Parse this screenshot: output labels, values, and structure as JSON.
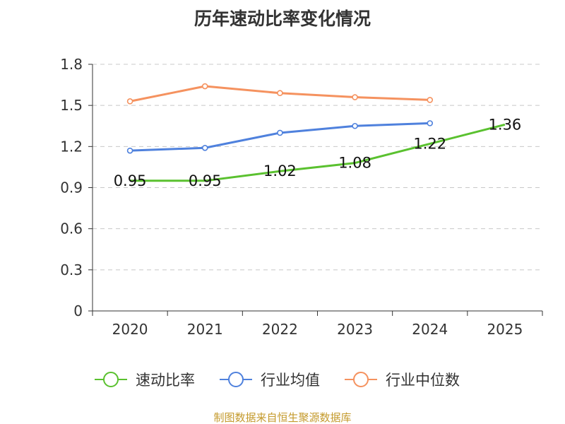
{
  "chart_data": {
    "type": "line",
    "title": "历年速动比率变化情况",
    "categories": [
      "2020",
      "2021",
      "2022",
      "2023",
      "2024",
      "2025"
    ],
    "ylim": [
      0,
      1.8
    ],
    "yticks": [
      "0",
      "0.3",
      "0.6",
      "0.9",
      "1.2",
      "1.5",
      "1.8"
    ],
    "ytick_values": [
      0,
      0.3,
      0.6,
      0.9,
      1.2,
      1.5,
      1.8
    ],
    "grid": true,
    "legend_position": "bottom",
    "series": [
      {
        "name": "速动比率",
        "color": "#5ac12f",
        "values": [
          0.95,
          0.95,
          1.02,
          1.08,
          1.22,
          1.36
        ],
        "labels": [
          "0.95",
          "0.95",
          "1.02",
          "1.08",
          "1.22",
          "1.36"
        ],
        "show_markers": false,
        "show_labels": true
      },
      {
        "name": "行业均值",
        "color": "#4f81dd",
        "values": [
          1.17,
          1.19,
          1.3,
          1.35,
          1.37,
          null
        ],
        "show_markers": true,
        "show_labels": false
      },
      {
        "name": "行业中位数",
        "color": "#f5925f",
        "values": [
          1.53,
          1.64,
          1.59,
          1.56,
          1.54,
          null
        ],
        "show_markers": true,
        "show_labels": false
      }
    ]
  },
  "source_text": "制图数据来自恒生聚源数据库"
}
